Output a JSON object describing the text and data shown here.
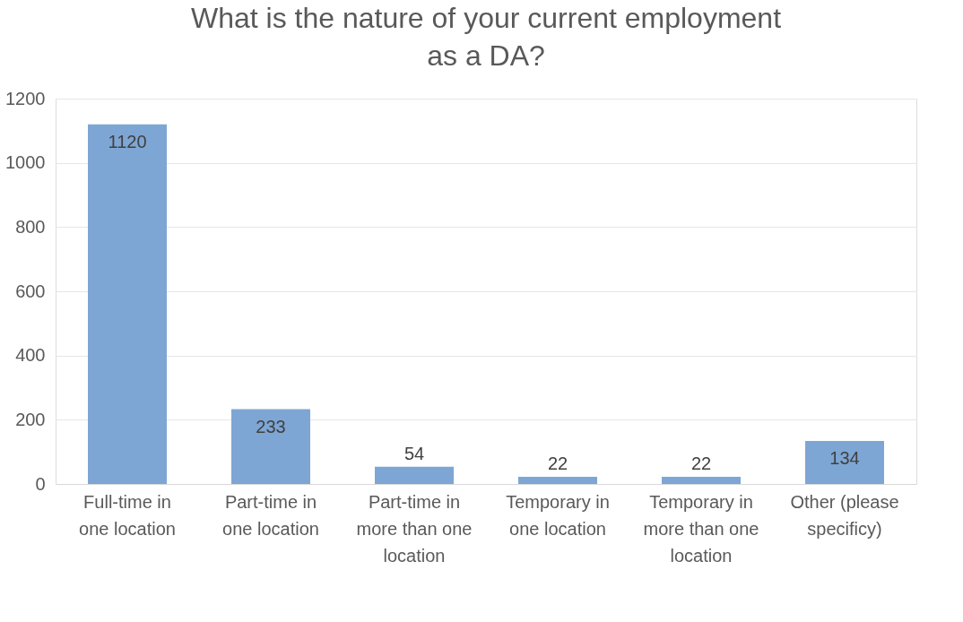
{
  "chart_data": {
    "type": "bar",
    "title": "What is the nature of your current employment as a DA?",
    "categories": [
      "Full-time in one location",
      "Part-time in one location",
      "Part-time in more than one location",
      "Temporary in one location",
      "Temporary in more than one location",
      "Other (please specificy)"
    ],
    "values": [
      1120,
      233,
      54,
      22,
      22,
      134
    ],
    "color": "#7ea6d4",
    "ylim": [
      0,
      1200
    ],
    "yticks": [
      0,
      200,
      400,
      600,
      800,
      1000,
      1200
    ],
    "grid": "y",
    "data_labels": true
  }
}
